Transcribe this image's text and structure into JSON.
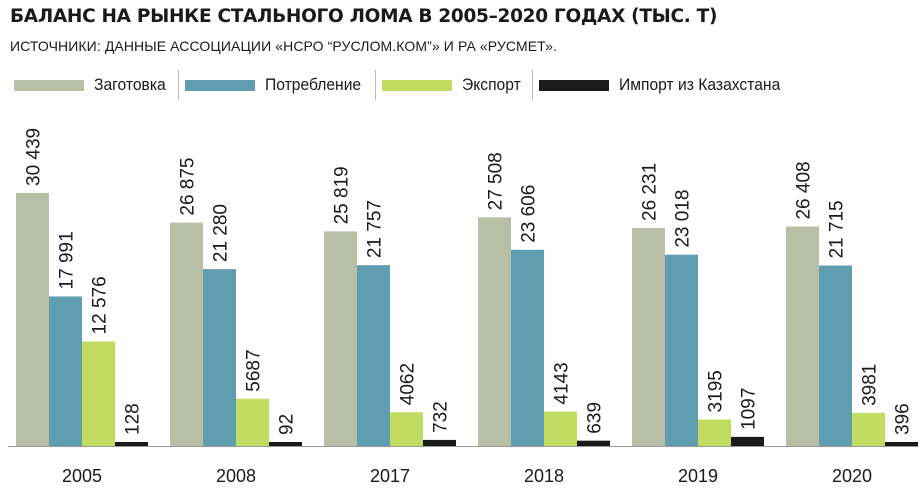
{
  "title": "БАЛАНС НА РЫНКЕ СТАЛЬНОГО ЛОМА В 2005–2020 ГОДАХ (ТЫС. Т)",
  "subtitle": "ИСТОЧНИКИ: ДАННЫЕ АССОЦИАЦИИ «НСРО “РУСЛОМ.КОМ”» И РА «РУСМЕТ».",
  "chart_data": {
    "type": "bar",
    "categories": [
      "2005",
      "2008",
      "2017",
      "2018",
      "2019",
      "2020"
    ],
    "series": [
      {
        "name": "Заготовка",
        "color": "#b9bfa6",
        "values": [
          30439,
          26875,
          25819,
          27508,
          26231,
          26408
        ],
        "labels": [
          "30 439",
          "26 875",
          "25 819",
          "27 508",
          "26 231",
          "26 408"
        ]
      },
      {
        "name": "Потребление",
        "color": "#5f9db1",
        "values": [
          17991,
          21280,
          21757,
          23606,
          23018,
          21715
        ],
        "labels": [
          "17 991",
          "21 280",
          "21 757",
          "23 606",
          "23 018",
          "21 715"
        ]
      },
      {
        "name": "Экспорт",
        "color": "#c2dc62",
        "values": [
          12576,
          5687,
          4062,
          4143,
          3195,
          3981
        ],
        "labels": [
          "12 576",
          "5687",
          "4062",
          "4143",
          "3195",
          "3981"
        ]
      },
      {
        "name": "Импорт из Казахстана",
        "color": "#1b1b1b",
        "values": [
          128,
          92,
          732,
          639,
          1097,
          396
        ],
        "labels": [
          "128",
          "92",
          "732",
          "639",
          "1097",
          "396"
        ]
      }
    ],
    "ylim": [
      0,
      30439
    ],
    "grid": false,
    "legend_position": "top"
  }
}
